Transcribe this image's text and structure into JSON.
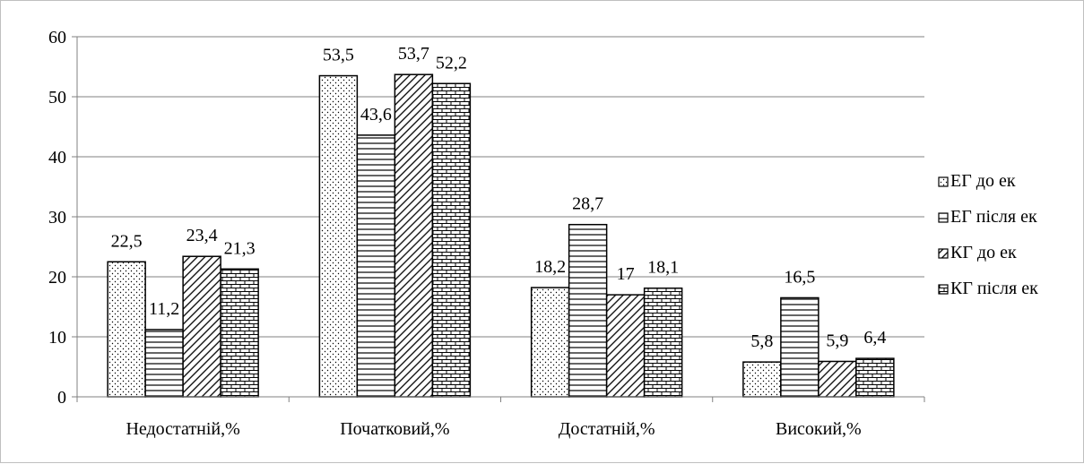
{
  "chart_data": {
    "type": "bar",
    "title": "",
    "xlabel": "",
    "ylabel": "",
    "ylim": [
      0,
      60
    ],
    "yticks": [
      0,
      10,
      20,
      30,
      40,
      50,
      60
    ],
    "grid": true,
    "legend_position": "right",
    "categories": [
      "Недостатній,%",
      "Початковий,%",
      "Достатній,%",
      "Високий,%"
    ],
    "series": [
      {
        "name": "ЕГ до ек",
        "pattern": "dots",
        "values": [
          22.5,
          53.5,
          18.2,
          5.8
        ],
        "labels": [
          "22,5",
          "53,5",
          "18,2",
          "5,8"
        ]
      },
      {
        "name": "ЕГ після ек",
        "pattern": "horizontal-lines",
        "values": [
          11.2,
          43.6,
          28.7,
          16.5
        ],
        "labels": [
          "11,2",
          "43,6",
          "28,7",
          "16,5"
        ]
      },
      {
        "name": "КГ до ек",
        "pattern": "diagonal-lines",
        "values": [
          23.4,
          53.7,
          17,
          5.9
        ],
        "labels": [
          "23,4",
          "53,7",
          "17",
          "5,9"
        ]
      },
      {
        "name": "КГ після ек",
        "pattern": "bricks",
        "values": [
          21.3,
          52.2,
          18.1,
          6.4
        ],
        "labels": [
          "21,3",
          "52,2",
          "18,1",
          "6,4"
        ]
      }
    ]
  },
  "colors": {
    "bar_fill": "#ffffff",
    "bar_stroke": "#000000",
    "grid": "#808080",
    "axis": "#808080"
  }
}
